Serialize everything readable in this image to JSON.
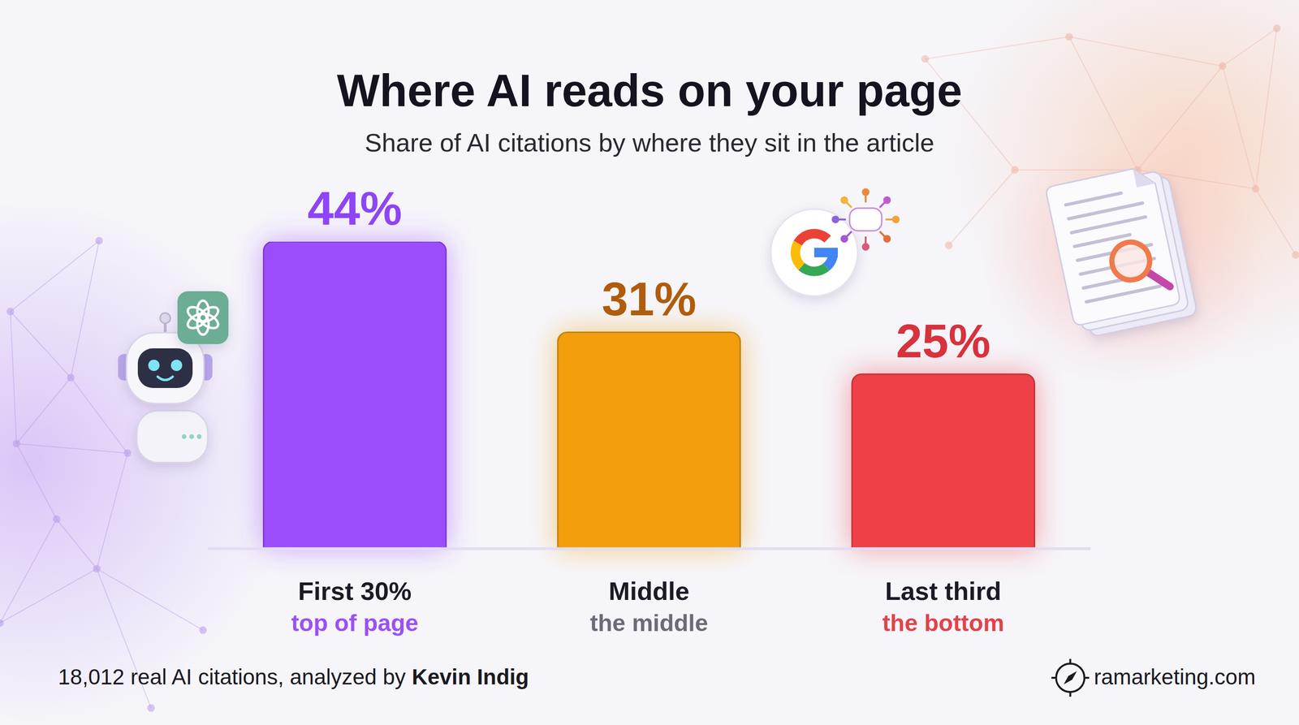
{
  "chart_data": {
    "type": "bar",
    "title": "Where AI reads on your page",
    "subtitle": "Share of AI citations by where they sit in the article",
    "categories": [
      "First 30%",
      "Middle",
      "Last third"
    ],
    "category_subtitles": [
      "top of page",
      "the middle",
      "the bottom"
    ],
    "values": [
      44,
      31,
      25
    ],
    "value_labels": [
      "44%",
      "31%",
      "25%"
    ],
    "colors": [
      "#9b4dfb",
      "#f29e0c",
      "#ef4047"
    ],
    "ylim": [
      0,
      44
    ],
    "data_labels": true,
    "tick_labels": "x",
    "grid": false,
    "source": "18,012 real AI citations, analyzed by",
    "source_author": "Kevin Indig",
    "brand": "ramarketing.com"
  }
}
